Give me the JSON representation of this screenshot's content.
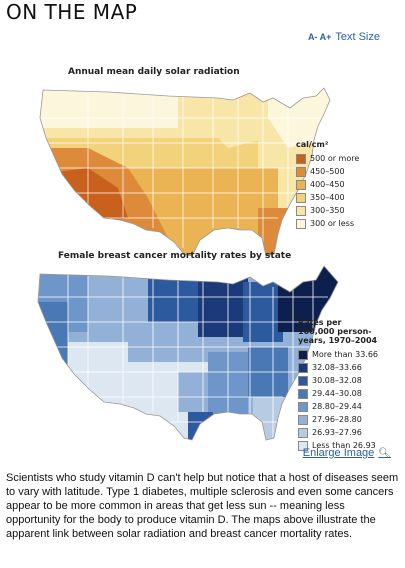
{
  "header": {
    "title": "ON THE MAP",
    "text_size_icon": "A- A+",
    "text_size_label": "Text Size"
  },
  "solar_map": {
    "title": "Annual mean daily solar radiation",
    "legend_title": "cal/cm²",
    "legend": [
      {
        "label": "500 or more",
        "color": "#c9601b"
      },
      {
        "label": "450–500",
        "color": "#dd8a3a"
      },
      {
        "label": "400–450",
        "color": "#eab454"
      },
      {
        "label": "350–400",
        "color": "#f2d27a"
      },
      {
        "label": "300–350",
        "color": "#f7e6a8"
      },
      {
        "label": "300 or less",
        "color": "#fcf6dc"
      }
    ]
  },
  "cancer_map": {
    "title": "Female breast cancer mortality rates by state",
    "legend_title": "Rates per 100,000 person-years, 1970–2004",
    "legend": [
      {
        "label": "More than 33.66",
        "color": "#0d1f4c"
      },
      {
        "label": "32.08–33.66",
        "color": "#1c3a7a"
      },
      {
        "label": "30.08–32.08",
        "color": "#2d5a9e"
      },
      {
        "label": "29.44–30.08",
        "color": "#4a78b5"
      },
      {
        "label": "28.80–29.44",
        "color": "#6e96c8"
      },
      {
        "label": "27.96–28.80",
        "color": "#93b1d6"
      },
      {
        "label": "26.93–27.96",
        "color": "#b7cbe3"
      },
      {
        "label": "Less than 26.93",
        "color": "#dce7f2"
      }
    ]
  },
  "enlarge_link": "Enlarge Image",
  "body_text": "Scientists who study vitamin D can't help but notice that a host of diseases seem to vary with latitude. Type 1 diabetes, multiple sclerosis and even some cancers appear to be more common in areas that get less sun -- meaning less opportunity for the body to produce vitamin D. The maps above illustrate the apparent link between solar radiation and breast cancer mortality rates."
}
